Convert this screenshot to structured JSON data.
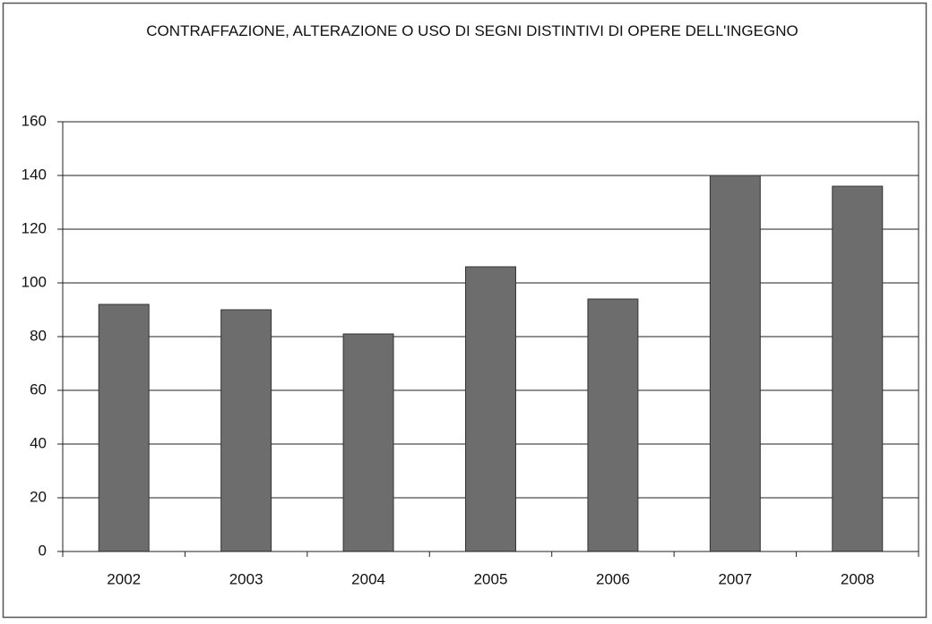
{
  "chart_data": {
    "type": "bar",
    "title": "CONTRAFFAZIONE, ALTERAZIONE O USO DI SEGNI DISTINTIVI DI OPERE DELL'INGEGNO",
    "categories": [
      "2002",
      "2003",
      "2004",
      "2005",
      "2006",
      "2007",
      "2008"
    ],
    "values": [
      92,
      90,
      81,
      106,
      94,
      140,
      136
    ],
    "color": "#6d6d6d",
    "ylim": [
      0,
      160
    ],
    "yticks": [
      0,
      20,
      40,
      60,
      80,
      100,
      120,
      140,
      160
    ],
    "grid": true
  }
}
